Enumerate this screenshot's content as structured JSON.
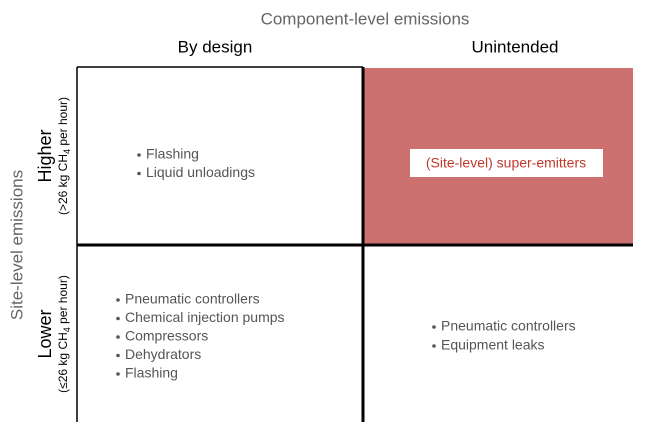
{
  "header": {
    "title": "Component-level emissions",
    "columns": [
      "By design",
      "Unintended"
    ]
  },
  "side": {
    "title": "Site-level emissions",
    "rows": [
      {
        "label": "Higher",
        "sublabel": [
          "(>26 kg CH",
          "4",
          " per hour)"
        ]
      },
      {
        "label": "Lower",
        "sublabel": [
          "(≤26 kg CH",
          "4",
          " per hour)"
        ]
      }
    ]
  },
  "cells": {
    "higher_by_design": [
      "Flashing",
      "Liquid unloadings"
    ],
    "higher_unintended": "(Site-level) super-emitters",
    "lower_by_design": [
      "Pneumatic controllers",
      "Chemical injection pumps",
      "Compressors",
      "Dehydrators",
      "Flashing"
    ],
    "lower_unintended": [
      "Pneumatic controllers",
      "Equipment leaks"
    ]
  }
}
